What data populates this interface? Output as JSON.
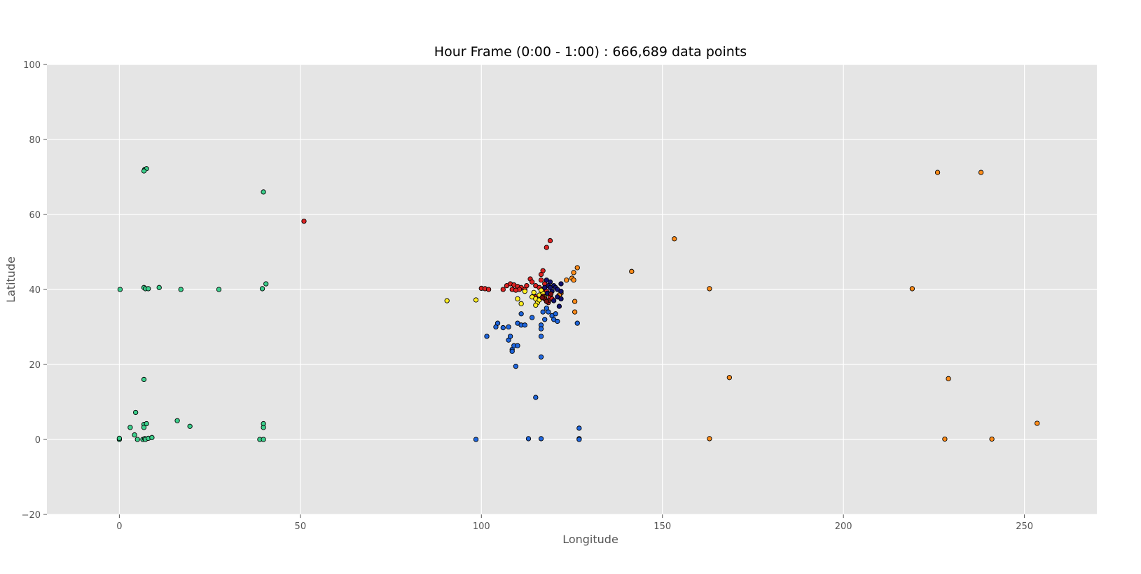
{
  "chart_data": {
    "type": "scatter",
    "title": "Hour Frame (0:00 - 1:00) : 666,689 data points",
    "xlabel": "Longitude",
    "ylabel": "Latitude",
    "xlim": [
      -20,
      270
    ],
    "ylim": [
      -20,
      100
    ],
    "xticks": [
      0,
      50,
      100,
      150,
      200,
      250
    ],
    "yticks": [
      -20,
      0,
      20,
      40,
      60,
      80,
      100
    ],
    "xtick_labels": [
      "0",
      "50",
      "100",
      "150",
      "200",
      "250"
    ],
    "ytick_labels": [
      "−20",
      "0",
      "20",
      "40",
      "60",
      "80",
      "100"
    ],
    "grid": true,
    "legend": "none",
    "colors": {
      "background": "#e5e5e5",
      "grid": "#ffffff",
      "marker_edge": "#000000"
    },
    "series": [
      {
        "color": "#3ccf8c",
        "points": [
          [
            7,
            72
          ],
          [
            7.5,
            72.2
          ],
          [
            6.8,
            71.6
          ],
          [
            39.8,
            66
          ],
          [
            0.2,
            40
          ],
          [
            6.8,
            40.5
          ],
          [
            7.2,
            40.2
          ],
          [
            8,
            40.2
          ],
          [
            11,
            40.5
          ],
          [
            17,
            40
          ],
          [
            27.5,
            40
          ],
          [
            39.5,
            40.2
          ],
          [
            40.5,
            41.5
          ],
          [
            6.8,
            16
          ],
          [
            4.5,
            7.2
          ],
          [
            6.8,
            4
          ],
          [
            7.5,
            4.2
          ],
          [
            6.8,
            3.2
          ],
          [
            3,
            3.2
          ],
          [
            16,
            5
          ],
          [
            19.5,
            3.5
          ],
          [
            4.2,
            1.2
          ],
          [
            5,
            0
          ],
          [
            0,
            0
          ],
          [
            0,
            0.3
          ],
          [
            6.5,
            0
          ],
          [
            7,
            0.2
          ],
          [
            7.2,
            0
          ],
          [
            8,
            0.3
          ],
          [
            9,
            0.5
          ],
          [
            38.8,
            0
          ],
          [
            39.8,
            0
          ],
          [
            39.8,
            3.2
          ],
          [
            39.8,
            4.2
          ]
        ]
      },
      {
        "color": "#dd2222",
        "points": [
          [
            51,
            58.2
          ],
          [
            119,
            53
          ],
          [
            118,
            51.2
          ],
          [
            117,
            45
          ],
          [
            116.5,
            44
          ],
          [
            100,
            40.3
          ],
          [
            101,
            40.2
          ],
          [
            102,
            40
          ],
          [
            106,
            40
          ],
          [
            107,
            41
          ],
          [
            108,
            41.5
          ],
          [
            109,
            41.2
          ],
          [
            110,
            40.8
          ],
          [
            111,
            40.5
          ],
          [
            112,
            40
          ],
          [
            112.5,
            41
          ],
          [
            113.5,
            42.8
          ],
          [
            114,
            42
          ],
          [
            115,
            41
          ],
          [
            116,
            40.5
          ],
          [
            117,
            40
          ],
          [
            118,
            39.5
          ],
          [
            116.5,
            42.5
          ],
          [
            117.5,
            41.5
          ],
          [
            119,
            38
          ],
          [
            119.5,
            37.5
          ],
          [
            118.5,
            36.5
          ],
          [
            115,
            38
          ],
          [
            110.5,
            40
          ],
          [
            108.5,
            40
          ],
          [
            109.5,
            39.8
          ]
        ]
      },
      {
        "color": "#ffee22",
        "points": [
          [
            90.5,
            37
          ],
          [
            98.5,
            37.2
          ],
          [
            110,
            37.5
          ],
          [
            111,
            36.2
          ],
          [
            112,
            39.5
          ],
          [
            114,
            38
          ],
          [
            115,
            37.5
          ],
          [
            115.5,
            36.5
          ],
          [
            116,
            38.5
          ],
          [
            117,
            39
          ],
          [
            116,
            37.2
          ],
          [
            115,
            35.8
          ],
          [
            114.5,
            39.2
          ],
          [
            116.5,
            39.8
          ],
          [
            117.5,
            38
          ]
        ]
      },
      {
        "color": "#ff8c1a",
        "points": [
          [
            126.5,
            45.8
          ],
          [
            125.5,
            44.5
          ],
          [
            125,
            43
          ],
          [
            125.5,
            42.5
          ],
          [
            123.5,
            42.5
          ],
          [
            122,
            39
          ],
          [
            121.5,
            38.5
          ],
          [
            125.8,
            36.8
          ],
          [
            125.8,
            34
          ],
          [
            141.5,
            44.8
          ],
          [
            153.3,
            53.5
          ],
          [
            163,
            40.2
          ],
          [
            163,
            0.2
          ],
          [
            168.5,
            16.5
          ],
          [
            219,
            40.2
          ],
          [
            226,
            71.2
          ],
          [
            238,
            71.2
          ],
          [
            229,
            16.2
          ],
          [
            228,
            0.1
          ],
          [
            241,
            0.1
          ],
          [
            253.5,
            4.3
          ]
        ]
      },
      {
        "color": "#111170",
        "points": [
          [
            118,
            42.5
          ],
          [
            119,
            42
          ],
          [
            120,
            41
          ],
          [
            120.5,
            40.5
          ],
          [
            121,
            40
          ],
          [
            122,
            39.5
          ],
          [
            122,
            41.5
          ],
          [
            118.5,
            41
          ],
          [
            117.5,
            40.5
          ],
          [
            119.5,
            39.5
          ],
          [
            121,
            38
          ],
          [
            120,
            37
          ],
          [
            121.5,
            35.5
          ],
          [
            122,
            37.5
          ],
          [
            119,
            40.5
          ],
          [
            118.2,
            39
          ]
        ]
      },
      {
        "color": "#1f66dd",
        "points": [
          [
            101.5,
            27.5
          ],
          [
            104,
            30
          ],
          [
            104.5,
            31
          ],
          [
            106,
            29.8
          ],
          [
            107.5,
            30
          ],
          [
            107.5,
            26.5
          ],
          [
            108,
            27.5
          ],
          [
            108.5,
            24
          ],
          [
            108.5,
            23.5
          ],
          [
            109,
            25
          ],
          [
            110,
            25
          ],
          [
            109.5,
            19.5
          ],
          [
            110,
            31
          ],
          [
            111,
            33.5
          ],
          [
            111,
            30.5
          ],
          [
            112,
            30.5
          ],
          [
            114,
            32.5
          ],
          [
            116.5,
            30.5
          ],
          [
            116.5,
            29.5
          ],
          [
            116.5,
            27.5
          ],
          [
            116.5,
            22
          ],
          [
            115,
            11.2
          ],
          [
            117.5,
            32
          ],
          [
            117,
            34
          ],
          [
            118,
            35
          ],
          [
            118.5,
            34
          ],
          [
            119.5,
            33
          ],
          [
            120,
            32
          ],
          [
            121,
            31.5
          ],
          [
            120.5,
            33.5
          ],
          [
            126.5,
            31
          ],
          [
            127,
            3
          ],
          [
            127,
            0.2
          ],
          [
            98.5,
            0
          ],
          [
            113,
            0.2
          ],
          [
            116.5,
            0.2
          ],
          [
            127,
            0
          ]
        ]
      },
      {
        "color": "#7a1010",
        "points": [
          [
            117,
            38.2
          ],
          [
            117.5,
            37.5
          ],
          [
            118.5,
            37
          ],
          [
            118,
            36.8
          ],
          [
            119.2,
            38.8
          ],
          [
            116.8,
            37.8
          ]
        ]
      }
    ]
  }
}
